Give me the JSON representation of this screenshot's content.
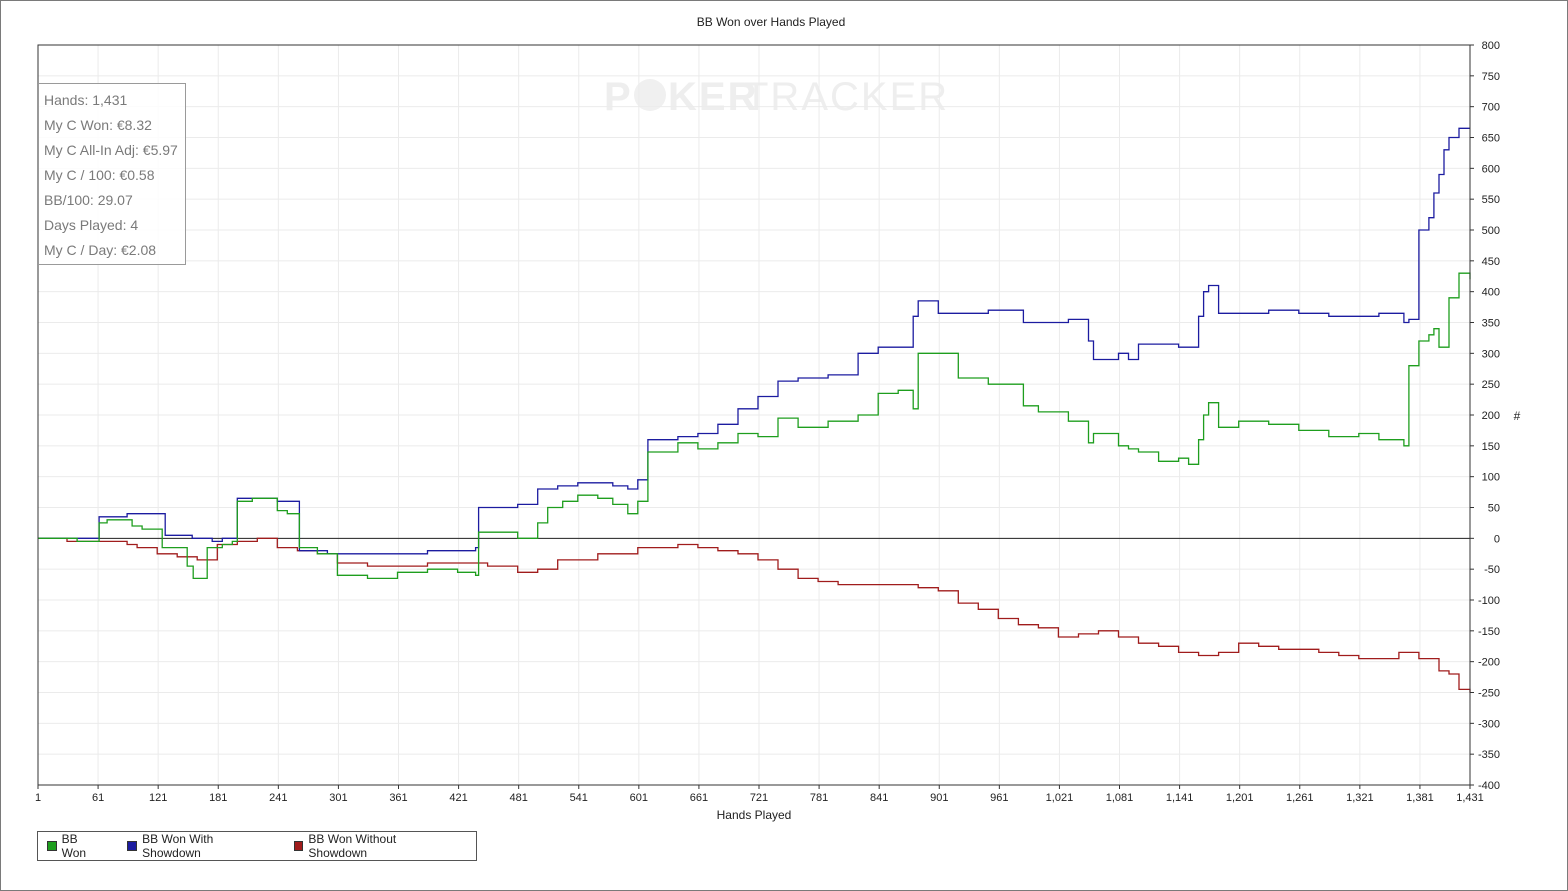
{
  "chart_data": {
    "type": "line",
    "title": "BB Won over Hands Played",
    "xlabel": "Hands Played",
    "ylabel": "#",
    "xlim": [
      1,
      1431
    ],
    "ylim": [
      -400,
      800
    ],
    "x_ticks": [
      "1",
      "61",
      "121",
      "181",
      "241",
      "301",
      "361",
      "421",
      "481",
      "541",
      "601",
      "661",
      "721",
      "781",
      "841",
      "901",
      "961",
      "1,021",
      "1,081",
      "1,141",
      "1,201",
      "1,261",
      "1,321",
      "1,381",
      "1,431"
    ],
    "y_ticks": [
      -400,
      -350,
      -300,
      -250,
      -200,
      -150,
      -100,
      -50,
      0,
      50,
      100,
      150,
      200,
      250,
      300,
      350,
      400,
      450,
      500,
      550,
      600,
      650,
      700,
      750,
      800
    ],
    "grid": true,
    "legend_position": "bottom-left",
    "series": [
      {
        "name": "BB Won",
        "color": "#1e9e1e",
        "x": [
          1,
          40,
          62,
          70,
          95,
          105,
          125,
          150,
          156,
          170,
          185,
          195,
          200,
          215,
          240,
          250,
          262,
          280,
          300,
          330,
          360,
          390,
          420,
          438,
          441,
          460,
          480,
          500,
          510,
          525,
          540,
          560,
          575,
          590,
          600,
          610,
          640,
          660,
          680,
          700,
          720,
          740,
          760,
          790,
          820,
          840,
          860,
          875,
          880,
          900,
          920,
          950,
          985,
          1000,
          1030,
          1050,
          1055,
          1080,
          1090,
          1100,
          1120,
          1140,
          1150,
          1160,
          1165,
          1170,
          1180,
          1200,
          1230,
          1260,
          1290,
          1320,
          1340,
          1365,
          1370,
          1380,
          1390,
          1395,
          1400,
          1410,
          1420,
          1431
        ],
        "y": [
          0,
          -5,
          25,
          30,
          20,
          15,
          -15,
          -45,
          -65,
          -15,
          -10,
          -5,
          60,
          65,
          45,
          40,
          -15,
          -25,
          -60,
          -65,
          -55,
          -50,
          -55,
          -60,
          10,
          10,
          0,
          25,
          50,
          60,
          70,
          65,
          55,
          40,
          60,
          140,
          155,
          145,
          155,
          170,
          165,
          195,
          180,
          190,
          200,
          235,
          240,
          210,
          300,
          300,
          260,
          250,
          215,
          205,
          190,
          155,
          170,
          150,
          145,
          140,
          125,
          130,
          120,
          160,
          200,
          220,
          180,
          190,
          185,
          175,
          165,
          170,
          160,
          150,
          280,
          320,
          330,
          340,
          310,
          390,
          430,
          420
        ]
      },
      {
        "name": "BB Won With Showdown",
        "color": "#1c1ca0",
        "x": [
          1,
          60,
          62,
          90,
          128,
          155,
          175,
          185,
          200,
          210,
          240,
          262,
          290,
          320,
          350,
          390,
          420,
          438,
          441,
          460,
          480,
          500,
          520,
          540,
          560,
          575,
          590,
          600,
          610,
          640,
          660,
          680,
          700,
          720,
          740,
          760,
          790,
          820,
          840,
          860,
          875,
          880,
          900,
          920,
          950,
          985,
          1000,
          1030,
          1050,
          1055,
          1080,
          1090,
          1100,
          1120,
          1140,
          1150,
          1160,
          1165,
          1170,
          1180,
          1200,
          1230,
          1260,
          1290,
          1320,
          1340,
          1365,
          1370,
          1380,
          1390,
          1395,
          1400,
          1405,
          1410,
          1420,
          1431
        ],
        "y": [
          0,
          0,
          35,
          40,
          5,
          0,
          -5,
          0,
          65,
          65,
          60,
          -20,
          -25,
          -25,
          -25,
          -20,
          -20,
          -15,
          50,
          50,
          55,
          80,
          85,
          90,
          90,
          85,
          80,
          95,
          160,
          165,
          170,
          185,
          210,
          230,
          255,
          260,
          265,
          300,
          310,
          310,
          360,
          385,
          365,
          365,
          370,
          350,
          350,
          355,
          320,
          290,
          300,
          290,
          315,
          315,
          310,
          310,
          360,
          400,
          410,
          365,
          365,
          370,
          365,
          360,
          360,
          365,
          350,
          355,
          500,
          520,
          560,
          590,
          630,
          650,
          665,
          665
        ]
      },
      {
        "name": "BB Won Without Showdown",
        "color": "#a01c1c",
        "x": [
          1,
          30,
          60,
          90,
          100,
          120,
          140,
          160,
          180,
          200,
          220,
          240,
          260,
          280,
          300,
          330,
          360,
          390,
          420,
          450,
          480,
          500,
          520,
          540,
          560,
          580,
          600,
          620,
          640,
          660,
          680,
          700,
          720,
          740,
          760,
          780,
          800,
          820,
          840,
          860,
          880,
          900,
          920,
          940,
          960,
          980,
          1000,
          1020,
          1040,
          1060,
          1080,
          1100,
          1120,
          1140,
          1160,
          1180,
          1200,
          1220,
          1240,
          1260,
          1280,
          1300,
          1320,
          1340,
          1360,
          1380,
          1400,
          1410,
          1420,
          1431
        ],
        "y": [
          0,
          -5,
          -5,
          -10,
          -15,
          -25,
          -30,
          -35,
          -10,
          -5,
          0,
          -15,
          -20,
          -25,
          -40,
          -45,
          -45,
          -40,
          -40,
          -45,
          -55,
          -50,
          -35,
          -35,
          -25,
          -25,
          -15,
          -15,
          -10,
          -15,
          -20,
          -25,
          -35,
          -50,
          -65,
          -70,
          -75,
          -75,
          -75,
          -75,
          -80,
          -85,
          -105,
          -115,
          -130,
          -140,
          -145,
          -160,
          -155,
          -150,
          -160,
          -170,
          -175,
          -185,
          -190,
          -185,
          -170,
          -175,
          -180,
          -180,
          -185,
          -190,
          -195,
          -195,
          -185,
          -195,
          -215,
          -220,
          -245,
          -250
        ]
      }
    ]
  },
  "stats": {
    "lines": [
      "Hands: 1,431",
      "My C Won: €8.32",
      "My C All-In Adj: €5.97",
      "My C / 100: €0.58",
      "BB/100: 29.07",
      "Days Played: 4",
      "My C / Day: €2.08"
    ]
  },
  "watermark": {
    "text_a": "P",
    "text_b": "KER",
    "text_c": "TRACKER"
  },
  "legend": {
    "items": [
      {
        "label": "BB Won",
        "color": "#1e9e1e"
      },
      {
        "label": "BB Won With Showdown",
        "color": "#1c1ca0"
      },
      {
        "label": "BB Won Without Showdown",
        "color": "#a01c1c"
      }
    ]
  }
}
